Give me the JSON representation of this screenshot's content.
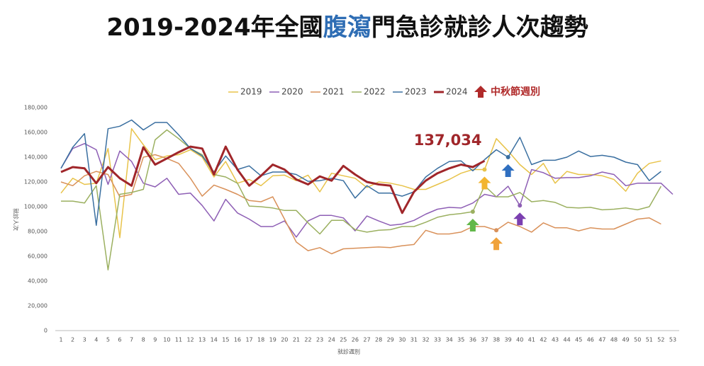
{
  "chart_data": {
    "type": "line",
    "title_parts": [
      "2019-2024年全國",
      "腹瀉",
      "門急診就診人次趨勢"
    ],
    "title_colors": [
      "#111111",
      "#2e6db4",
      "#111111"
    ],
    "x_label": "就診週別",
    "y_label": "就診人次",
    "categories": [
      "1",
      "2",
      "3",
      "4",
      "5",
      "6",
      "7",
      "8",
      "9",
      "10",
      "11",
      "12",
      "13",
      "14",
      "15",
      "16",
      "17",
      "18",
      "19",
      "20",
      "21",
      "22",
      "23",
      "24",
      "25",
      "26",
      "27",
      "28",
      "29",
      "30",
      "31",
      "32",
      "33",
      "34",
      "35",
      "36",
      "37",
      "38",
      "39",
      "40",
      "41",
      "42",
      "43",
      "44",
      "45",
      "46",
      "47",
      "48",
      "49",
      "50",
      "51",
      "52",
      "53"
    ],
    "ylim": [
      0,
      180000
    ],
    "yticks": [
      0,
      {
        "value": 20000,
        "label": "20,000"
      },
      {
        "value": 40000,
        "label": "40,000"
      },
      {
        "value": 60000,
        "label": "60,000"
      },
      {
        "value": 80000,
        "label": "80,000"
      },
      {
        "value": 100000,
        "label": "100,000"
      },
      {
        "value": 120000,
        "label": "120,000"
      },
      {
        "value": 140000,
        "label": "140,000"
      },
      {
        "value": 160000,
        "label": "160,000"
      },
      {
        "value": 180000,
        "label": "180,000"
      }
    ],
    "grid": false,
    "marker_legend": "中秋節週別",
    "marker_color": "#b02a2a",
    "series": [
      {
        "name": "2019",
        "color": "#e8c34a",
        "width": 1.5,
        "mid_autumn_week": 37,
        "arrow_color": "#f2b530",
        "values": [
          111000,
          123000,
          118000,
          119000,
          147000,
          75000,
          163000,
          150000,
          138000,
          141000,
          142000,
          146000,
          140000,
          124000,
          136500,
          119000,
          122000,
          117000,
          125000,
          125500,
          121000,
          125500,
          112000,
          127000,
          125000,
          123000,
          115500,
          120000,
          119000,
          117000,
          114000,
          114000,
          118000,
          122000,
          127000,
          130000,
          130000,
          155000,
          145000,
          134000,
          126000,
          135000,
          119000,
          128500,
          126000,
          126000,
          125000,
          122000,
          112500,
          127000,
          135000,
          137000,
          null
        ]
      },
      {
        "name": "2020",
        "color": "#8e5fb5",
        "width": 1.5,
        "mid_autumn_week": 40,
        "arrow_color": "#7b3fb0",
        "values": [
          131000,
          147000,
          151000,
          146000,
          118000,
          145000,
          136500,
          119000,
          116000,
          123000,
          110000,
          111000,
          101000,
          88500,
          106000,
          95000,
          90000,
          84000,
          84000,
          88500,
          75500,
          88500,
          93000,
          93000,
          91000,
          80500,
          92500,
          88500,
          85000,
          86000,
          89000,
          94000,
          98000,
          99500,
          99000,
          103000,
          110000,
          108000,
          116500,
          101000,
          130000,
          127500,
          123000,
          123500,
          123500,
          125000,
          128000,
          126000,
          117000,
          119000,
          119000,
          119000,
          110000
        ]
      },
      {
        "name": "2021",
        "color": "#d9915a",
        "width": 1.5,
        "mid_autumn_week": 38,
        "arrow_color": "#f0a23a",
        "values": [
          120000,
          117000,
          125000,
          128500,
          126000,
          108000,
          110000,
          140000,
          142000,
          139000,
          135000,
          123000,
          108500,
          117500,
          114000,
          110000,
          105000,
          104000,
          108000,
          90000,
          71500,
          64500,
          67000,
          62000,
          66000,
          66500,
          67000,
          67500,
          67000,
          68500,
          69500,
          81000,
          78000,
          78000,
          79500,
          84000,
          84000,
          81000,
          87500,
          84000,
          79500,
          87000,
          83000,
          83000,
          80500,
          83000,
          82000,
          82000,
          86000,
          90000,
          91000,
          86000,
          null
        ]
      },
      {
        "name": "2022",
        "color": "#9bb060",
        "width": 1.5,
        "mid_autumn_week": 36,
        "arrow_color": "#62b84a",
        "values": [
          104500,
          104500,
          103000,
          117000,
          49000,
          110000,
          111500,
          114000,
          154000,
          162000,
          155000,
          147000,
          142000,
          126000,
          124000,
          119000,
          100500,
          100000,
          99000,
          97000,
          97000,
          87000,
          78000,
          89000,
          89000,
          81500,
          79500,
          81000,
          81500,
          84000,
          84000,
          87500,
          91500,
          93500,
          94500,
          96000,
          117000,
          108000,
          108000,
          111500,
          104000,
          105000,
          103500,
          99500,
          99000,
          99500,
          97500,
          98000,
          99000,
          97500,
          100000,
          116500,
          null
        ]
      },
      {
        "name": "2023",
        "color": "#3a6fa0",
        "width": 1.5,
        "mid_autumn_week": 39,
        "arrow_color": "#2f6fc0",
        "values": [
          131000,
          148000,
          159000,
          85000,
          163000,
          165000,
          170000,
          162000,
          168000,
          168000,
          158000,
          147000,
          141000,
          128000,
          141000,
          130000,
          133000,
          125000,
          128000,
          128000,
          126000,
          120500,
          121000,
          123000,
          121000,
          107000,
          117000,
          111000,
          111000,
          108500,
          112000,
          124000,
          131000,
          136500,
          137000,
          129000,
          138000,
          146000,
          140000,
          156000,
          134000,
          137500,
          137500,
          140000,
          145000,
          140500,
          141500,
          140000,
          136000,
          134000,
          121000,
          128500,
          null
        ]
      },
      {
        "name": "2024",
        "color": "#a0262a",
        "width": 3,
        "values": [
          128000,
          132000,
          131000,
          119000,
          132000,
          123000,
          117000,
          148000,
          134000,
          139000,
          144000,
          148500,
          147000,
          126000,
          148500,
          130000,
          117000,
          125000,
          134000,
          130000,
          122000,
          118000,
          124500,
          121000,
          133000,
          126000,
          120000,
          118000,
          117000,
          95000,
          112000,
          121000,
          127000,
          131000,
          134000,
          132000,
          137034,
          null,
          null,
          null,
          null,
          null,
          null,
          null,
          null,
          null,
          null,
          null,
          null,
          null,
          null,
          null,
          null
        ],
        "value_labels": [
          null,
          null,
          null,
          null,
          null,
          null,
          null,
          null,
          null,
          null,
          null,
          null,
          null,
          null,
          null,
          null,
          null,
          null,
          null,
          null,
          null,
          null,
          null,
          null,
          null,
          null,
          null,
          null,
          null,
          null,
          null,
          null,
          null,
          null,
          null,
          null,
          "137,034",
          null,
          null,
          null,
          null,
          null,
          null,
          null,
          null,
          null,
          null,
          null,
          null,
          null,
          null,
          null,
          null
        ]
      }
    ]
  }
}
